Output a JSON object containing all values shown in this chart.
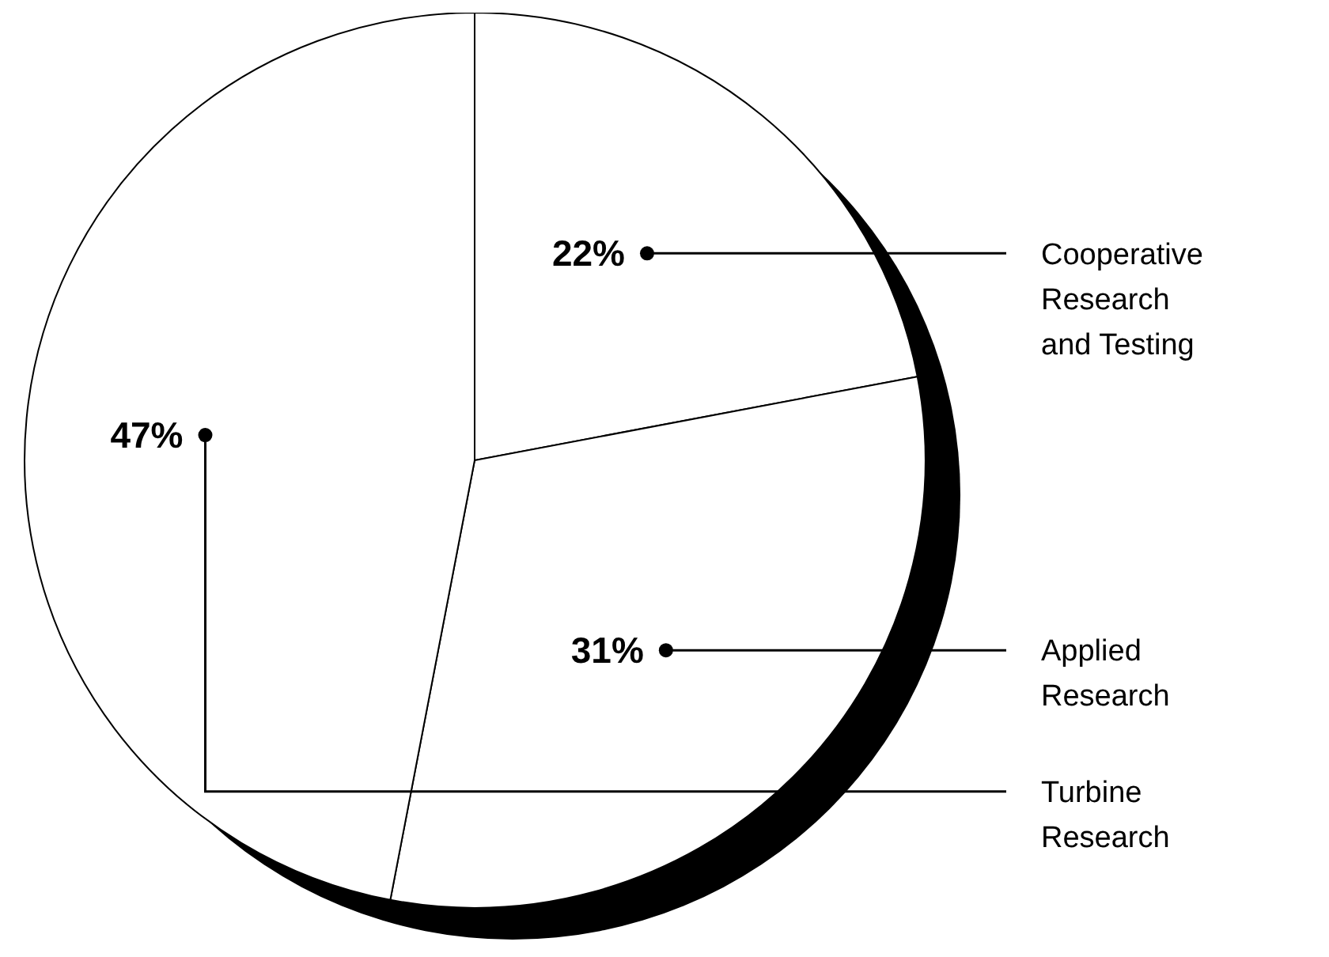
{
  "chart_data": {
    "type": "pie",
    "categories": [
      "Cooperative Research and Testing",
      "Applied Research",
      "Turbine Research"
    ],
    "values": [
      22,
      31,
      47
    ],
    "colors": [
      "#ffffff",
      "#ffffff",
      "#ffffff"
    ],
    "value_labels": [
      "22%",
      "31%",
      "47%"
    ]
  }
}
